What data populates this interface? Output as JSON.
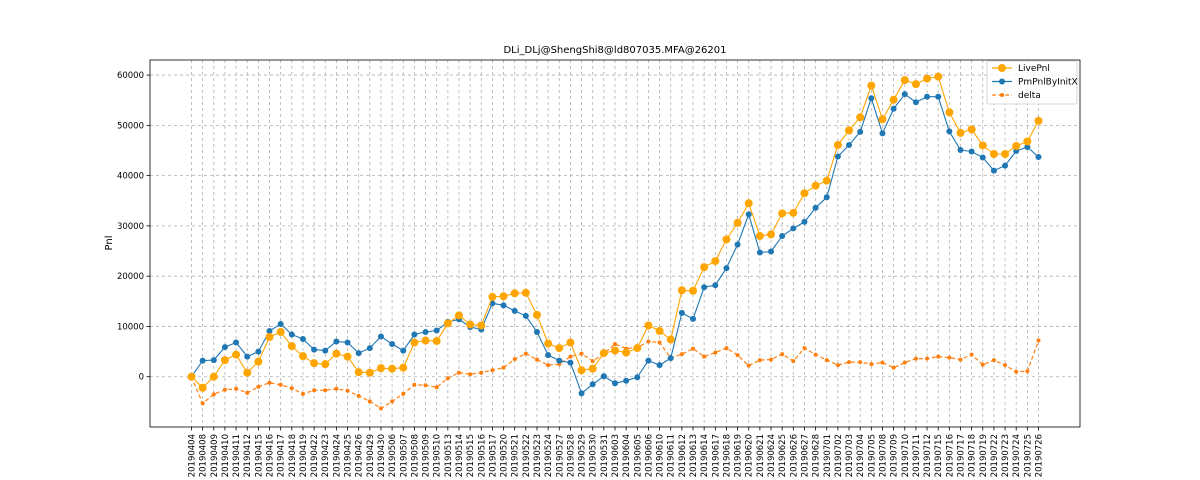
{
  "chart_data": {
    "type": "line",
    "title": "DLi_DLj@ShengShi8@ld807035.MFA@26201",
    "xlabel": "",
    "ylabel": "Pnl",
    "ylim": [
      -10000,
      63000
    ],
    "yticks": [
      0,
      10000,
      20000,
      30000,
      40000,
      50000,
      60000
    ],
    "grid": true,
    "legend_position": "top-right",
    "categories": [
      "20190404",
      "20190408",
      "20190409",
      "20190410",
      "20190411",
      "20190412",
      "20190415",
      "20190416",
      "20190417",
      "20190418",
      "20190419",
      "20190422",
      "20190423",
      "20190424",
      "20190425",
      "20190426",
      "20190429",
      "20190430",
      "20190506",
      "20190507",
      "20190508",
      "20190509",
      "20190510",
      "20190513",
      "20190514",
      "20190515",
      "20190516",
      "20190517",
      "20190520",
      "20190521",
      "20190522",
      "20190523",
      "20190524",
      "20190527",
      "20190528",
      "20190529",
      "20190530",
      "20190531",
      "20190603",
      "20190604",
      "20190605",
      "20190606",
      "20190610",
      "20190611",
      "20190612",
      "20190613",
      "20190614",
      "20190617",
      "20190618",
      "20190619",
      "20190620",
      "20190621",
      "20190624",
      "20190625",
      "20190626",
      "20190627",
      "20190628",
      "20190701",
      "20190702",
      "20190703",
      "20190704",
      "20190705",
      "20190708",
      "20190709",
      "20190710",
      "20190711",
      "20190712",
      "20190715",
      "20190716",
      "20190717",
      "20190718",
      "20190719",
      "20190722",
      "20190723",
      "20190724",
      "20190725",
      "20190726"
    ],
    "series": [
      {
        "name": "LivePnl",
        "color": "#ffa500",
        "style": "solid",
        "marker_radius": 4,
        "values": [
          0,
          -2200,
          0,
          3300,
          4400,
          800,
          3000,
          7900,
          8900,
          6100,
          4100,
          2700,
          2500,
          4600,
          4000,
          900,
          800,
          1700,
          1600,
          1800,
          6800,
          7200,
          7100,
          10600,
          12200,
          10400,
          10200,
          15900,
          16000,
          16600,
          16700,
          12300,
          6600,
          5700,
          6800,
          1300,
          1600,
          4700,
          5200,
          4800,
          5700,
          10200,
          9100,
          7400,
          17200,
          17100,
          21800,
          23000,
          27300,
          30600,
          34500,
          28000,
          28300,
          32500,
          32600,
          36500,
          38000,
          39000,
          46100,
          49000,
          51600,
          57900,
          51200,
          55100,
          59000,
          58200,
          59300,
          59700,
          52600,
          48500,
          49200,
          46000,
          44300,
          44300,
          45900,
          46800,
          50900
        ]
      },
      {
        "name": "PmPnlByInitX",
        "color": "#1f77b4",
        "style": "solid",
        "marker_radius": 3,
        "values": [
          0,
          3200,
          3300,
          5900,
          6800,
          4000,
          5000,
          9100,
          10500,
          8400,
          7500,
          5400,
          5200,
          7000,
          6800,
          4700,
          5700,
          8000,
          6500,
          5200,
          8400,
          8900,
          9200,
          10900,
          11400,
          9900,
          9400,
          14600,
          14200,
          13100,
          12100,
          8900,
          4300,
          3200,
          2800,
          -3300,
          -1500,
          100,
          -1300,
          -800,
          -100,
          3200,
          2300,
          3700,
          12700,
          11500,
          17800,
          18200,
          21600,
          26300,
          32300,
          24700,
          24900,
          28000,
          29500,
          30800,
          33600,
          35700,
          43800,
          46100,
          48700,
          55400,
          48400,
          53300,
          56200,
          54600,
          55700,
          55700,
          48800,
          45100,
          44800,
          43600,
          41000,
          42000,
          44900,
          45700,
          43700
        ]
      },
      {
        "name": "delta",
        "color": "#ff7f0e",
        "style": "dashed",
        "marker_radius": 2,
        "values": [
          0,
          -5300,
          -3500,
          -2600,
          -2400,
          -3200,
          -2000,
          -1200,
          -1600,
          -2300,
          -3400,
          -2700,
          -2700,
          -2400,
          -2800,
          -3800,
          -4900,
          -6300,
          -4900,
          -3400,
          -1600,
          -1700,
          -2100,
          -300,
          800,
          500,
          800,
          1300,
          1800,
          3500,
          4600,
          3400,
          2300,
          2500,
          4000,
          4600,
          3100,
          4600,
          6500,
          5600,
          5800,
          7000,
          6800,
          3700,
          4500,
          5600,
          4000,
          4800,
          5700,
          4300,
          2200,
          3300,
          3400,
          4500,
          3100,
          5700,
          4400,
          3300,
          2300,
          2900,
          2900,
          2500,
          2800,
          1800,
          2800,
          3600,
          3600,
          4000,
          3800,
          3400,
          4400,
          2400,
          3300,
          2300,
          1000,
          1100,
          7200
        ]
      }
    ]
  }
}
